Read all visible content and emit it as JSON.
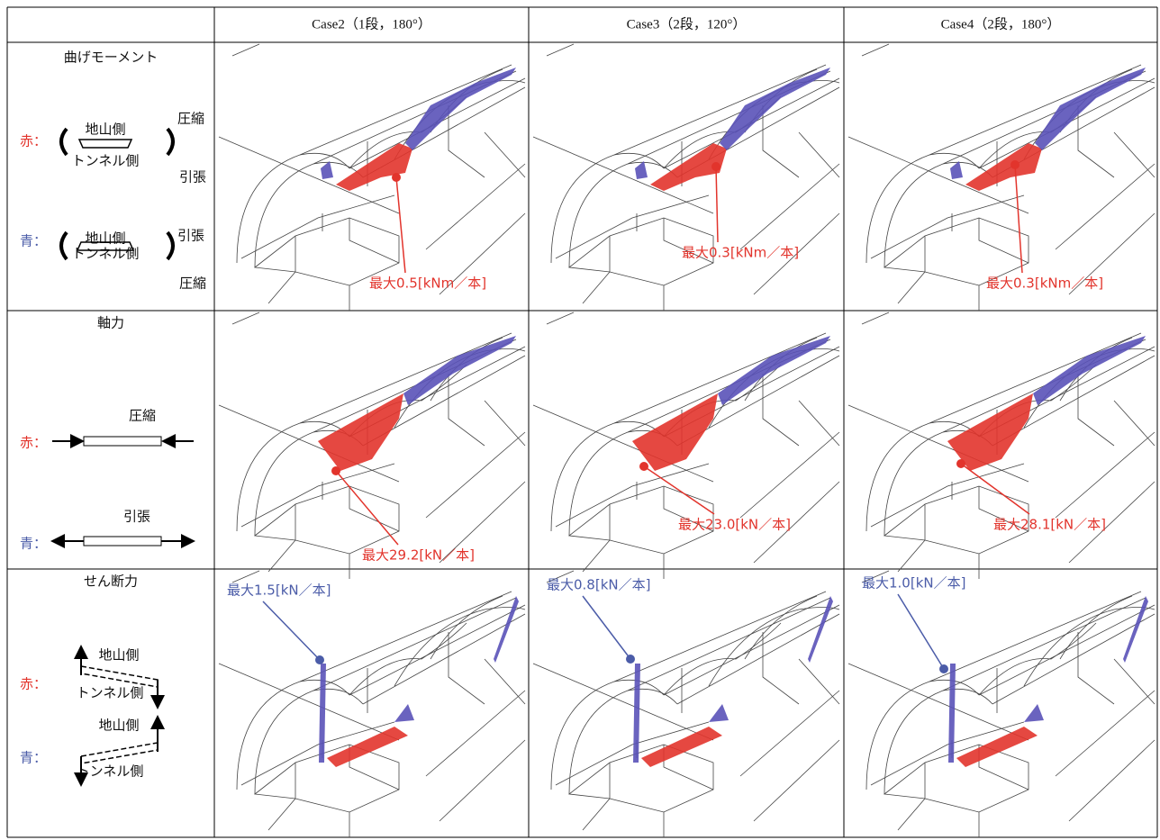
{
  "table": {
    "header": [
      "Case2（1段，180°）",
      "Case3（2段，120°）",
      "Case4（2段，180°）"
    ],
    "rows": [
      {
        "title": "曲げモーメント",
        "legend": [
          {
            "mark": "赤：",
            "texts": [
              "地山側",
              "トンネル側",
              "圧縮",
              "引張"
            ]
          },
          {
            "mark": "青：",
            "texts": [
              "地山側",
              "トンネル側",
              "引張",
              "圧縮"
            ]
          }
        ],
        "cells": [
          "最大0.5[kNm／本]",
          "最大0.3[kNm／本]",
          "最大0.3[kNm／本]"
        ]
      },
      {
        "title": "軸力",
        "legend": [
          {
            "mark": "赤：",
            "texts": [
              "圧縮"
            ]
          },
          {
            "mark": "青：",
            "texts": [
              "引張"
            ]
          }
        ],
        "cells": [
          "最大29.2[kN／本]",
          "最大23.0[kN／本]",
          "最大28.1[kN／本]"
        ]
      },
      {
        "title": "せん断力",
        "legend": [
          {
            "mark": "赤：",
            "texts": [
              "地山側",
              "トンネル側"
            ]
          },
          {
            "mark": "青：",
            "texts": [
              "地山側",
              "トンネル側"
            ]
          }
        ],
        "cells": [
          "最大1.5[kN／本]",
          "最大0.8[kN／本]",
          "最大1.0[kN／本]"
        ]
      }
    ]
  }
}
